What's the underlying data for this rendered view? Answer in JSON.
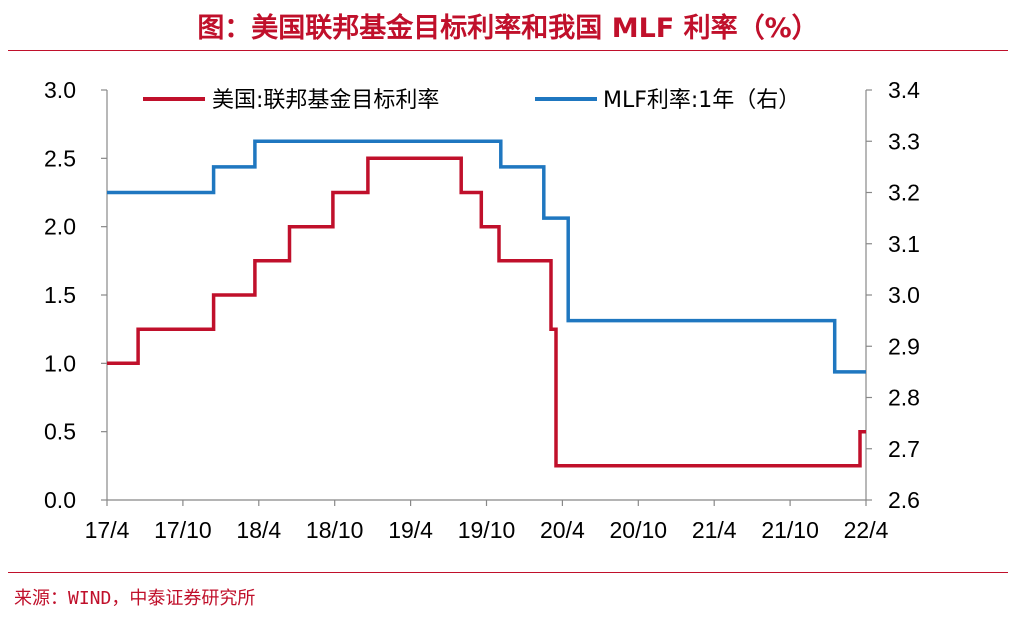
{
  "header": {
    "title": "图：美国联邦基金目标利率和我国 MLF 利率（%）"
  },
  "footer": {
    "source": "来源：WIND，中泰证券研究所"
  },
  "chart_data": {
    "type": "line",
    "title": "图：美国联邦基金目标利率和我国 MLF 利率（%）",
    "x_ticks": [
      "17/4",
      "17/10",
      "18/4",
      "18/10",
      "19/4",
      "19/10",
      "20/4",
      "20/10",
      "21/4",
      "21/10",
      "22/4"
    ],
    "x_range": [
      "2017-04",
      "2022-04"
    ],
    "y_left": {
      "range": [
        0.0,
        3.0
      ],
      "ticks": [
        "0.0",
        "0.5",
        "1.0",
        "1.5",
        "2.0",
        "2.5",
        "3.0"
      ]
    },
    "y_right": {
      "range": [
        2.6,
        3.4
      ],
      "ticks": [
        "2.6",
        "2.7",
        "2.8",
        "2.9",
        "3.0",
        "3.1",
        "3.2",
        "3.3",
        "3.4"
      ]
    },
    "legend_placement": "top",
    "grid": false,
    "series": [
      {
        "name": "美国:联邦基金目标利率",
        "axis": "left",
        "color": "#c0102b",
        "step": true,
        "points": [
          [
            "2017-04-01",
            1.0
          ],
          [
            "2017-06-15",
            1.25
          ],
          [
            "2017-12-14",
            1.5
          ],
          [
            "2018-03-22",
            1.75
          ],
          [
            "2018-06-14",
            2.0
          ],
          [
            "2018-09-27",
            2.25
          ],
          [
            "2018-12-20",
            2.5
          ],
          [
            "2019-08-01",
            2.25
          ],
          [
            "2019-09-19",
            2.0
          ],
          [
            "2019-10-31",
            1.75
          ],
          [
            "2020-03-04",
            1.25
          ],
          [
            "2020-03-16",
            0.25
          ],
          [
            "2022-03-17",
            0.5
          ],
          [
            "2022-04-01",
            0.5
          ]
        ]
      },
      {
        "name": "MLF利率:1年（右）",
        "axis": "right",
        "color": "#1f77c0",
        "step": true,
        "points": [
          [
            "2017-04-01",
            3.2
          ],
          [
            "2017-12-14",
            3.25
          ],
          [
            "2018-03-22",
            3.3
          ],
          [
            "2019-11-05",
            3.25
          ],
          [
            "2020-02-17",
            3.15
          ],
          [
            "2020-04-15",
            2.95
          ],
          [
            "2022-01-17",
            2.85
          ],
          [
            "2022-04-01",
            2.85
          ]
        ]
      }
    ]
  }
}
